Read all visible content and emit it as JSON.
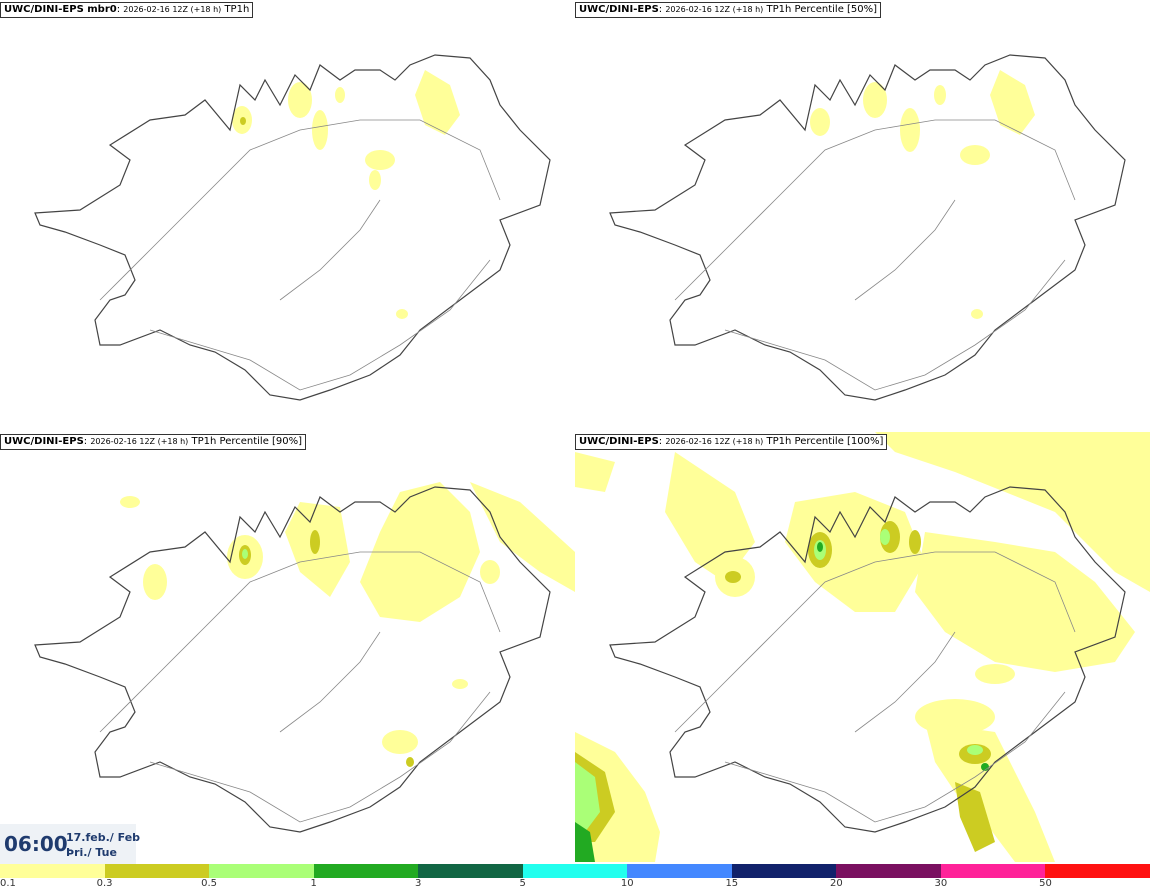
{
  "panels": [
    {
      "model": "UWC/DINI-EPS",
      "model_suffix": " mbr0",
      "run": "2026-02-16 12Z (+18 h)",
      "field": "TP1h"
    },
    {
      "model": "UWC/DINI-EPS",
      "model_suffix": "",
      "run": "2026-02-16 12Z (+18 h)",
      "field": "TP1h Percentile [50%]"
    },
    {
      "model": "UWC/DINI-EPS",
      "model_suffix": "",
      "run": "2026-02-16 12Z (+18 h)",
      "field": "TP1h Percentile [90%]"
    },
    {
      "model": "UWC/DINI-EPS",
      "model_suffix": "",
      "run": "2026-02-16 12Z (+18 h)",
      "field": "TP1h Percentile [100%]"
    }
  ],
  "valid_time": {
    "time": "06:00",
    "date": "17.feb./ Feb",
    "day": "Þri./ Tue"
  },
  "legend": {
    "colors": [
      "#ffff99",
      "#cccc22",
      "#aaff77",
      "#22aa22",
      "#116644",
      "#22ffee",
      "#4488ff",
      "#11226b",
      "#7a1060",
      "#ff2299",
      "#ff1111"
    ],
    "labels": [
      "0.1",
      "0.3",
      "0.5",
      "1",
      "3",
      "5",
      "10",
      "15",
      "20",
      "30",
      "50"
    ]
  },
  "colors": {
    "coastline": "#444444",
    "roads": "#888888",
    "time_text": "#1f3b6e"
  }
}
